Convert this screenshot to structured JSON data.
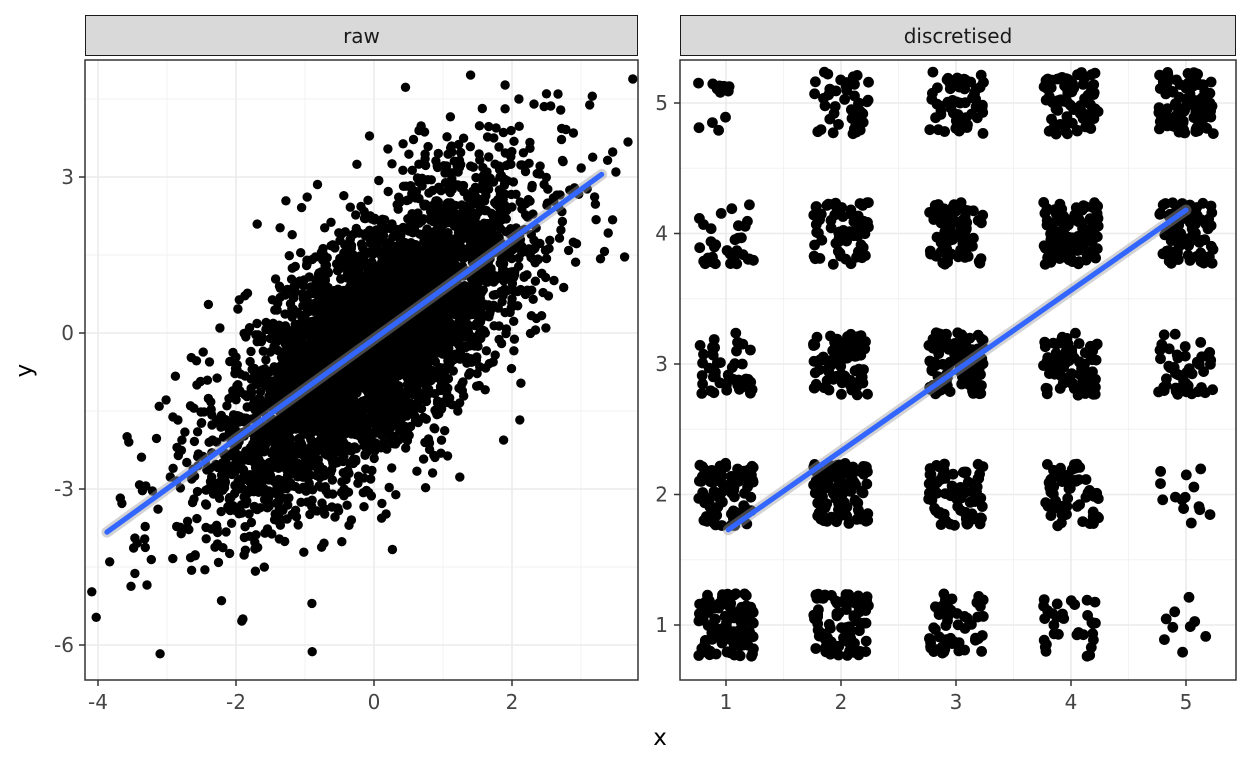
{
  "figure": {
    "xlabel": "x",
    "ylabel": "y",
    "background": "#ffffff"
  },
  "colors": {
    "point": "#000000",
    "smooth_line": "#3366FF",
    "smooth_ribbon": "#9e9e9e",
    "strip_background": "#d9d9d9",
    "strip_border": "#1a1a1a",
    "panel_border": "#333333",
    "grid_major": "#ebebeb",
    "grid_minor": "#f2f2f2",
    "tick_label": "#444444",
    "tick_mark": "#333333"
  },
  "chart_data": [
    {
      "facet": "raw",
      "type": "scatter",
      "xlabel": "x",
      "ylabel": "y",
      "grid": "on",
      "legend": "none",
      "x_ticks": [
        -4,
        -2,
        0,
        2
      ],
      "x_minor_ticks": [
        -3,
        -1,
        1,
        3
      ],
      "y_ticks": [
        3,
        0,
        -3,
        -6
      ],
      "y_minor_ticks": [
        4.5,
        1.5,
        -1.5,
        -4.5
      ],
      "xlim": [
        -4.2,
        3.85
      ],
      "ylim": [
        -6.67,
        5.25
      ],
      "n_points": 4600,
      "point_cloud": {
        "shape": "bivariate-normal",
        "x_mean": 0,
        "x_sd": 1.12,
        "slope": 0.96,
        "intercept": -0.12,
        "resid_sd": 1.12
      },
      "notable_points": [
        [
          -3.1,
          -6.17
        ],
        [
          -3.83,
          -4.4
        ],
        [
          -1.9,
          -5.5
        ],
        [
          -0.9,
          -5.2
        ],
        [
          1.4,
          4.96
        ],
        [
          1.9,
          4.77
        ],
        [
          2.1,
          4.5
        ],
        [
          3.46,
          3.48
        ],
        [
          3.17,
          3.38
        ],
        [
          2.5,
          4.6
        ]
      ],
      "regression_line": {
        "x1": -3.87,
        "y1": -3.83,
        "x2": 3.3,
        "y2": 3.05
      }
    },
    {
      "facet": "discretised",
      "type": "scatter",
      "xlabel": "x",
      "ylabel": "y",
      "grid": "on",
      "legend": "none",
      "x_ticks": [
        1,
        2,
        3,
        4,
        5
      ],
      "x_minor_ticks": [
        1.5,
        2.5,
        3.5,
        4.5
      ],
      "y_ticks": [
        5,
        4,
        3,
        2,
        1
      ],
      "y_minor_ticks": [
        1.5,
        2.5,
        3.5,
        4.5
      ],
      "xlim": [
        0.6,
        5.43
      ],
      "ylim": [
        0.58,
        5.33
      ],
      "jitter": 0.24,
      "grid_counts": {
        "x_values": [
          1,
          2,
          3,
          4,
          5
        ],
        "y_order": [
          5,
          4,
          3,
          2,
          1
        ],
        "rows": [
          [
            12,
            42,
            58,
            78,
            95
          ],
          [
            32,
            68,
            85,
            105,
            88
          ],
          [
            48,
            78,
            115,
            85,
            48
          ],
          [
            88,
            108,
            78,
            58,
            14
          ],
          [
            108,
            82,
            52,
            32,
            9
          ]
        ]
      },
      "regression_line": {
        "x1": 1.02,
        "y1": 1.73,
        "x2": 5.0,
        "y2": 4.18
      }
    }
  ]
}
